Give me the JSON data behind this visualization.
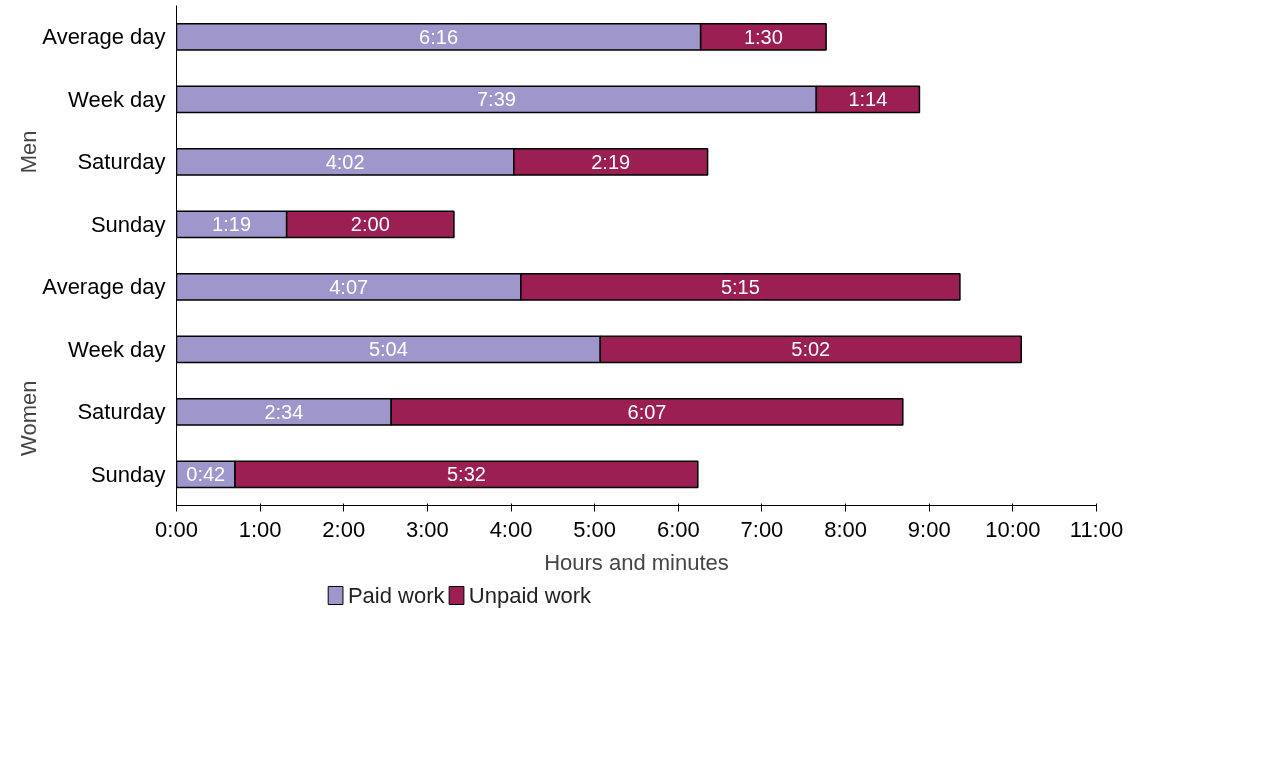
{
  "chart_data": {
    "type": "bar",
    "orientation": "horizontal",
    "stacked": true,
    "categories": [
      "Average day",
      "Week day",
      "Saturday",
      "Sunday",
      "Average day",
      "Week day",
      "Saturday",
      "Sunday"
    ],
    "series": [
      {
        "name": "Paid work",
        "color": "#9f97cc",
        "values": [
          6.267,
          7.65,
          4.033,
          1.317,
          4.117,
          5.067,
          2.567,
          0.7
        ],
        "value_labels": [
          "6:16",
          "7:39",
          "4:02",
          "1:19",
          "4:07",
          "5:04",
          "2:34",
          "0:42"
        ]
      },
      {
        "name": "Unpaid work",
        "color": "#9c1f54",
        "values": [
          1.5,
          1.233,
          2.317,
          2.0,
          5.25,
          5.033,
          6.117,
          5.533
        ],
        "value_labels": [
          "1:30",
          "1:14",
          "2:19",
          "2:00",
          "5:15",
          "5:02",
          "6:07",
          "5:32"
        ]
      }
    ],
    "xlim": [
      0,
      11
    ],
    "xticks": [
      {
        "value": 0,
        "label": "0:00"
      },
      {
        "value": 1,
        "label": "1:00"
      },
      {
        "value": 2,
        "label": "2:00"
      },
      {
        "value": 3,
        "label": "3:00"
      },
      {
        "value": 4,
        "label": "4:00"
      },
      {
        "value": 5,
        "label": "5:00"
      },
      {
        "value": 6,
        "label": "6:00"
      },
      {
        "value": 7,
        "label": "7:00"
      },
      {
        "value": 8,
        "label": "8:00"
      },
      {
        "value": 9,
        "label": "9:00"
      },
      {
        "value": 10,
        "label": "10:00"
      },
      {
        "value": 11,
        "label": "11:00"
      }
    ],
    "xlabel": "Hours and minutes",
    "annotations": [
      "Men",
      "Women"
    ],
    "legend": "bottom left"
  }
}
